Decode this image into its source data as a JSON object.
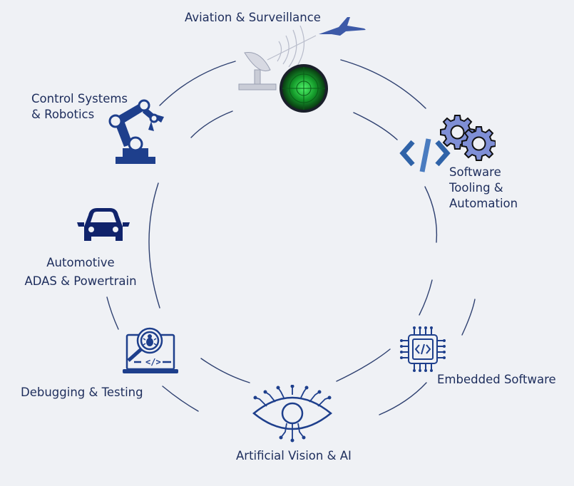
{
  "nodes": {
    "aviation": {
      "label": "Aviation & Surveillance",
      "icon": "radar-jet-icon"
    },
    "software": {
      "lines": [
        "Software",
        "Tooling &",
        "Automation"
      ],
      "icon": "code-gears-icon"
    },
    "embedded": {
      "label": "Embedded Software",
      "icon": "chip-icon"
    },
    "vision": {
      "label": "Artificial Vision & AI",
      "icon": "eye-circuit-icon"
    },
    "debugging": {
      "label": "Debugging & Testing",
      "icon": "laptop-bug-icon"
    },
    "automotive": {
      "lines": [
        "Automotive",
        "ADAS & Powertrain"
      ],
      "icon": "car-icon"
    },
    "control": {
      "lines": [
        "Control Systems",
        "& Robotics"
      ],
      "icon": "robot-arm-icon"
    }
  },
  "colors": {
    "background": "#eff1f5",
    "text": "#1d2d5c",
    "arc": "#2e4070",
    "icon": "#1e3f8c",
    "gears": "#7f8fd6",
    "radar": "#1fbf3a"
  }
}
